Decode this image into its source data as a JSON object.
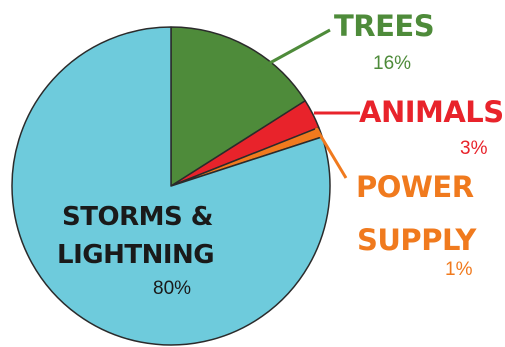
{
  "chart_data": {
    "type": "pie",
    "slices": [
      {
        "label": "TREES",
        "label_line2": "",
        "value": 16,
        "value_label": "16%",
        "color": "#4e8b3a"
      },
      {
        "label": "ANIMALS",
        "label_line2": "",
        "value": 3,
        "value_label": "3%",
        "color": "#e8232b"
      },
      {
        "label": "POWER",
        "label_line2": "SUPPLY",
        "value": 1,
        "value_label": "1%",
        "color": "#f07a1e"
      },
      {
        "label": "STORMS &",
        "label_line2": "LIGHTNING",
        "value": 80,
        "value_label": "80%",
        "color": "#6ecbdc"
      }
    ],
    "legend": "none",
    "label_placement": "callouts"
  }
}
